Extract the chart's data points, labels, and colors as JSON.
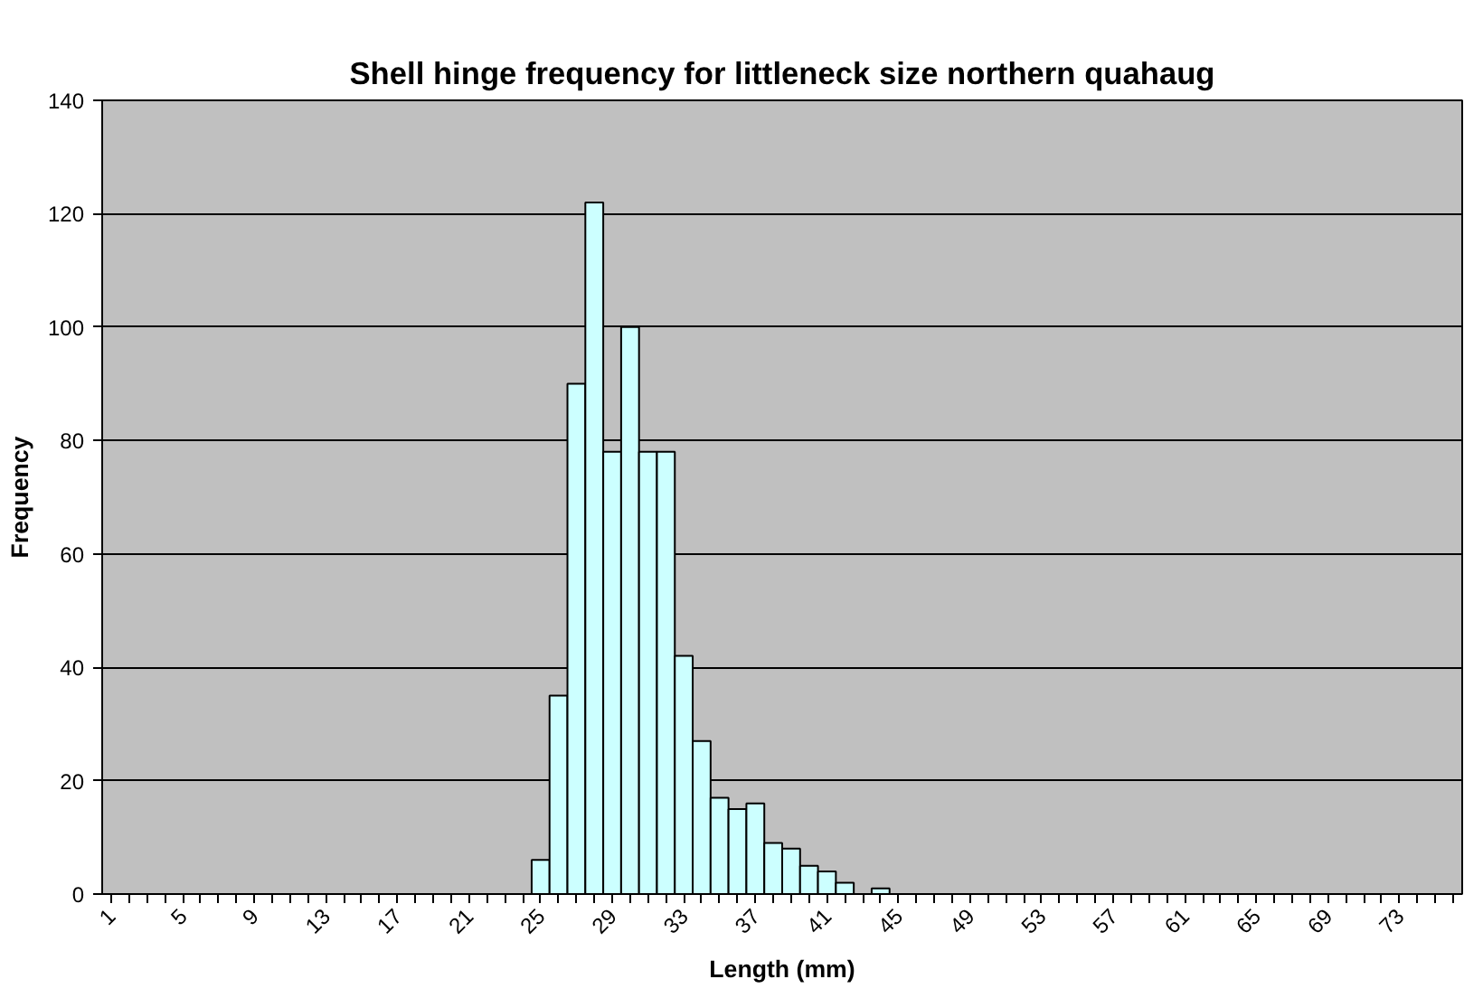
{
  "chart_data": {
    "type": "bar",
    "title": "Shell hinge frequency for littleneck size northern quahaug",
    "xlabel": "Length (mm)",
    "ylabel": "Frequency",
    "categories": [
      "1",
      null,
      null,
      null,
      "5",
      null,
      null,
      null,
      "9",
      null,
      null,
      null,
      "13",
      null,
      null,
      null,
      "17",
      null,
      null,
      null,
      "21",
      null,
      null,
      null,
      "25",
      null,
      null,
      null,
      "29",
      null,
      null,
      null,
      "33",
      null,
      null,
      null,
      "37",
      null,
      null,
      null,
      "41",
      null,
      null,
      null,
      "45",
      null,
      null,
      null,
      "49",
      null,
      null,
      null,
      "53",
      null,
      null,
      null,
      "57",
      null,
      null,
      null,
      "61",
      null,
      null,
      null,
      "65",
      null,
      null,
      null,
      "69",
      null,
      null,
      null,
      "73",
      null,
      null,
      null
    ],
    "values": [
      0,
      0,
      0,
      0,
      0,
      0,
      0,
      0,
      0,
      0,
      0,
      0,
      0,
      0,
      0,
      0,
      0,
      0,
      0,
      0,
      0,
      0,
      0,
      0,
      6,
      35,
      90,
      122,
      78,
      100,
      78,
      78,
      42,
      27,
      17,
      15,
      16,
      9,
      8,
      5,
      4,
      2,
      0,
      1,
      0,
      0,
      0,
      0,
      0,
      0,
      0,
      0,
      0,
      0,
      0,
      0,
      0,
      0,
      0,
      0,
      0,
      0,
      0,
      0,
      0,
      0,
      0,
      0,
      0,
      0,
      0,
      0,
      0,
      0,
      0,
      0
    ],
    "color": "#ccffff",
    "ylim": [
      0,
      140
    ],
    "yticks": [
      0,
      20,
      40,
      60,
      80,
      100,
      120,
      140
    ],
    "grid": "y"
  }
}
